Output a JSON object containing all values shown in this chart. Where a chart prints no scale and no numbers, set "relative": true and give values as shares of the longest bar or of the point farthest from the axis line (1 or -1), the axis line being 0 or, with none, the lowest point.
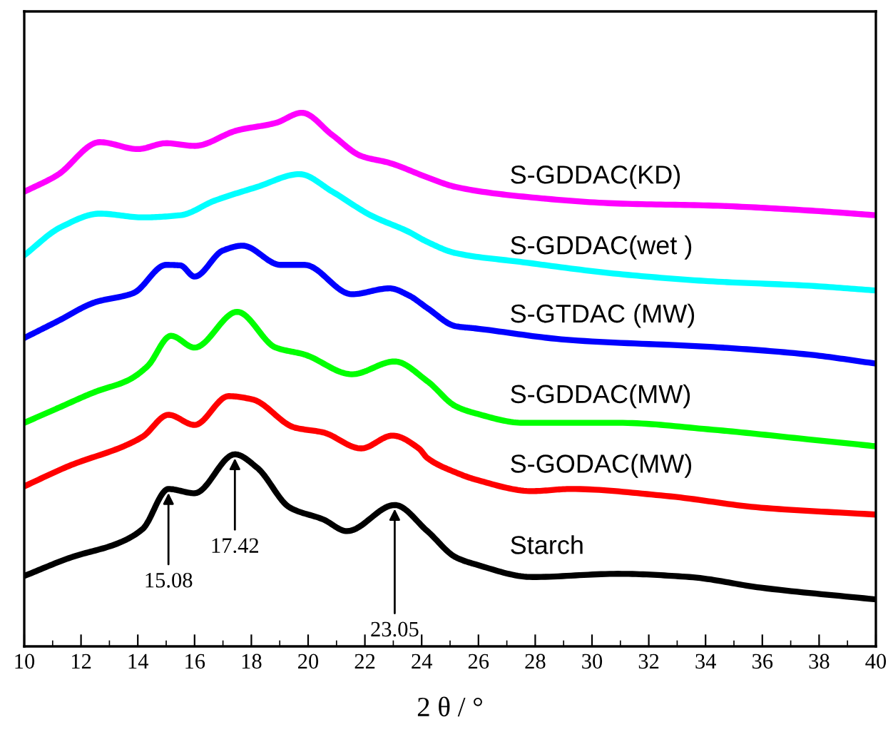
{
  "chart_data": {
    "type": "line",
    "relative": true,
    "xlabel": "2 θ / °",
    "xlim": [
      10,
      40
    ],
    "xticks": [
      10,
      12,
      14,
      16,
      18,
      20,
      22,
      24,
      26,
      28,
      30,
      32,
      34,
      36,
      38,
      40
    ],
    "tick_labels": "x",
    "grid": false,
    "marker": "none",
    "line_style": "solid",
    "series": [
      {
        "name": "S-GDDAC(KD)",
        "color": "#ff00ff",
        "x": [
          10.0,
          11.16,
          12.66,
          14.0,
          15.0,
          16.0,
          17.5,
          18.86,
          19.78,
          20.86,
          21.87,
          22.87,
          24.2,
          25.2,
          27.57,
          30.92,
          34.27,
          37.62,
          40.0
        ],
        "values": [
          0.852,
          0.883,
          0.945,
          0.932,
          0.943,
          0.938,
          0.967,
          0.981,
          1.0,
          0.958,
          0.919,
          0.906,
          0.879,
          0.861,
          0.843,
          0.83,
          0.826,
          0.817,
          0.808
        ]
      },
      {
        "name": "S-GDDAC(wet )",
        "color": "#00ffff",
        "x": [
          10.0,
          11.3,
          12.66,
          14.17,
          15.5,
          16.69,
          18.2,
          19.7,
          20.86,
          22.2,
          23.54,
          24.2,
          25.2,
          27.57,
          30.92,
          34.27,
          37.62,
          40.0
        ],
        "values": [
          0.733,
          0.786,
          0.811,
          0.804,
          0.808,
          0.835,
          0.861,
          0.885,
          0.852,
          0.808,
          0.777,
          0.758,
          0.737,
          0.72,
          0.698,
          0.684,
          0.676,
          0.667
        ]
      },
      {
        "name": "S-GTDAC (MW)",
        "color": "#0000ff",
        "x": [
          10.0,
          11.16,
          12.5,
          13.84,
          15.0,
          15.5,
          16.0,
          17.0,
          17.69,
          19.03,
          19.87,
          21.54,
          22.87,
          23.54,
          24.2,
          25.2,
          25.88,
          29.25,
          34.27,
          37.62,
          40.0
        ],
        "values": [
          0.578,
          0.609,
          0.645,
          0.662,
          0.715,
          0.714,
          0.693,
          0.742,
          0.751,
          0.715,
          0.715,
          0.66,
          0.671,
          0.658,
          0.634,
          0.6,
          0.596,
          0.574,
          0.561,
          0.547,
          0.53
        ]
      },
      {
        "name": "S-GDDAC(MW)",
        "color": "#00ff00",
        "x": [
          10.0,
          11.16,
          12.5,
          13.67,
          14.34,
          15.17,
          16.0,
          17.5,
          18.86,
          19.87,
          21.54,
          23.05,
          24.2,
          25.2,
          25.88,
          27.57,
          30.92,
          34.27,
          37.62,
          40.0
        ],
        "values": [
          0.419,
          0.446,
          0.477,
          0.499,
          0.525,
          0.582,
          0.56,
          0.627,
          0.56,
          0.547,
          0.51,
          0.534,
          0.497,
          0.45,
          0.437,
          0.419,
          0.419,
          0.406,
          0.388,
          0.375
        ]
      },
      {
        "name": "S-GODAC(MW)",
        "color": "#ff0000",
        "x": [
          10.0,
          11.66,
          13.5,
          14.17,
          15.08,
          16.0,
          17.2,
          18.03,
          19.53,
          20.53,
          21.87,
          22.97,
          23.9,
          24.2,
          25.2,
          25.88,
          27.9,
          29.25,
          32.6,
          35.95,
          40.0
        ],
        "values": [
          0.3,
          0.34,
          0.375,
          0.393,
          0.434,
          0.415,
          0.469,
          0.463,
          0.41,
          0.401,
          0.371,
          0.395,
          0.371,
          0.353,
          0.326,
          0.313,
          0.291,
          0.295,
          0.282,
          0.26,
          0.247
        ]
      },
      {
        "name": "Starch",
        "color": "#000000",
        "x": [
          10.0,
          11.66,
          13.34,
          14.17,
          15.08,
          16.0,
          17.42,
          18.2,
          19.36,
          20.53,
          21.37,
          23.05,
          24.2,
          25.2,
          25.88,
          27.9,
          30.92,
          33.43,
          35.95,
          40.0
        ],
        "values": [
          0.132,
          0.167,
          0.194,
          0.22,
          0.295,
          0.287,
          0.36,
          0.335,
          0.26,
          0.238,
          0.216,
          0.265,
          0.216,
          0.167,
          0.154,
          0.13,
          0.136,
          0.13,
          0.11,
          0.088
        ]
      }
    ],
    "annotations": [
      {
        "text": "15.08",
        "x": 15.08,
        "y": 0.295
      },
      {
        "text": "17.42",
        "x": 17.42,
        "y": 0.36
      },
      {
        "text": "23.05",
        "x": 23.05,
        "y": 0.265
      }
    ]
  }
}
